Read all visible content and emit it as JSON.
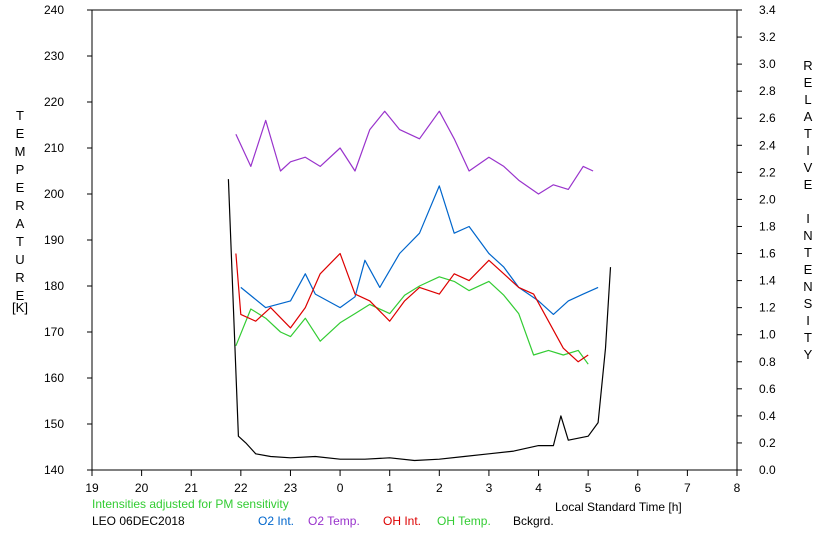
{
  "chart_data": {
    "type": "line",
    "left_axis_label": "TEMPERATURE",
    "left_axis_unit": "[K]",
    "right_axis_label": "RELATIVE INTENSITY",
    "xlabel": "Local Standard Time [h]",
    "xlim": [
      19,
      8
    ],
    "x_ticks": [
      "19",
      "20",
      "21",
      "22",
      "23",
      "0",
      "1",
      "2",
      "3",
      "4",
      "5",
      "6",
      "7",
      "8"
    ],
    "ylim_left": [
      140,
      240
    ],
    "y_ticks_left": [
      "140",
      "150",
      "160",
      "170",
      "180",
      "190",
      "200",
      "210",
      "220",
      "230",
      "240"
    ],
    "ylim_right": [
      0.0,
      3.4
    ],
    "y_ticks_right": [
      "0.0",
      "0.2",
      "0.4",
      "0.6",
      "0.8",
      "1.0",
      "1.2",
      "1.4",
      "1.6",
      "1.8",
      "2.0",
      "2.2",
      "2.4",
      "2.6",
      "2.8",
      "3.0",
      "3.2",
      "3.4"
    ],
    "note": "Intensities adjusted for PM sensitivity",
    "station": "LEO 06DEC2018",
    "colors": {
      "o2_int": "#0066cc",
      "o2_temp": "#9933cc",
      "oh_int": "#dd0000",
      "oh_temp": "#33cc33",
      "background": "#000000",
      "note": "#33cc33"
    },
    "series": [
      {
        "name": "O2 Int.",
        "axis": "right",
        "x": [
          22.0,
          22.5,
          23.0,
          23.3,
          23.5,
          24.0,
          24.3,
          24.5,
          24.8,
          25.2,
          25.6,
          26.0,
          26.3,
          26.6,
          27.0,
          27.3,
          27.6,
          28.0,
          28.3,
          28.6,
          28.9,
          29.2
        ],
        "y": [
          1.35,
          1.2,
          1.25,
          1.45,
          1.3,
          1.2,
          1.28,
          1.55,
          1.35,
          1.6,
          1.75,
          2.1,
          1.75,
          1.8,
          1.6,
          1.5,
          1.35,
          1.25,
          1.15,
          1.25,
          1.3,
          1.35
        ]
      },
      {
        "name": "O2 Temp.",
        "axis": "left",
        "x": [
          21.9,
          22.2,
          22.5,
          22.8,
          23.0,
          23.3,
          23.6,
          24.0,
          24.3,
          24.6,
          24.9,
          25.2,
          25.6,
          26.0,
          26.3,
          26.6,
          27.0,
          27.3,
          27.6,
          28.0,
          28.3,
          28.6,
          28.9,
          29.1
        ],
        "y": [
          213,
          206,
          216,
          205,
          207,
          208,
          206,
          210,
          205,
          214,
          218,
          214,
          212,
          218,
          212,
          205,
          208,
          206,
          203,
          200,
          202,
          201,
          206,
          205
        ]
      },
      {
        "name": "OH Int.",
        "axis": "right",
        "x": [
          21.9,
          22.0,
          22.3,
          22.6,
          23.0,
          23.3,
          23.6,
          24.0,
          24.3,
          24.6,
          25.0,
          25.3,
          25.6,
          26.0,
          26.3,
          26.6,
          27.0,
          27.3,
          27.6,
          27.9,
          28.2,
          28.5,
          28.8,
          29.0
        ],
        "y": [
          1.6,
          1.15,
          1.1,
          1.2,
          1.05,
          1.2,
          1.45,
          1.6,
          1.3,
          1.25,
          1.1,
          1.25,
          1.35,
          1.3,
          1.45,
          1.4,
          1.55,
          1.45,
          1.35,
          1.3,
          1.1,
          0.9,
          0.8,
          0.85
        ]
      },
      {
        "name": "OH Temp.",
        "axis": "left",
        "x": [
          21.9,
          22.2,
          22.5,
          22.8,
          23.0,
          23.3,
          23.6,
          24.0,
          24.3,
          24.6,
          25.0,
          25.3,
          25.6,
          26.0,
          26.3,
          26.6,
          27.0,
          27.3,
          27.6,
          27.9,
          28.2,
          28.5,
          28.8,
          29.0
        ],
        "y": [
          167,
          175,
          173,
          170,
          169,
          173,
          168,
          172,
          174,
          176,
          174,
          178,
          180,
          182,
          181,
          179,
          181,
          178,
          174,
          165,
          166,
          165,
          166,
          163
        ]
      },
      {
        "name": "Bckgrd.",
        "axis": "right",
        "x": [
          21.75,
          21.85,
          21.95,
          22.1,
          22.3,
          22.6,
          23.0,
          23.5,
          24.0,
          24.5,
          25.0,
          25.5,
          26.0,
          26.5,
          27.0,
          27.5,
          28.0,
          28.3,
          28.45,
          28.6,
          29.0,
          29.2,
          29.35,
          29.45
        ],
        "y": [
          2.15,
          1.2,
          0.25,
          0.2,
          0.12,
          0.1,
          0.09,
          0.1,
          0.08,
          0.08,
          0.09,
          0.07,
          0.08,
          0.1,
          0.12,
          0.14,
          0.18,
          0.18,
          0.4,
          0.22,
          0.25,
          0.35,
          0.9,
          1.5
        ]
      }
    ]
  }
}
